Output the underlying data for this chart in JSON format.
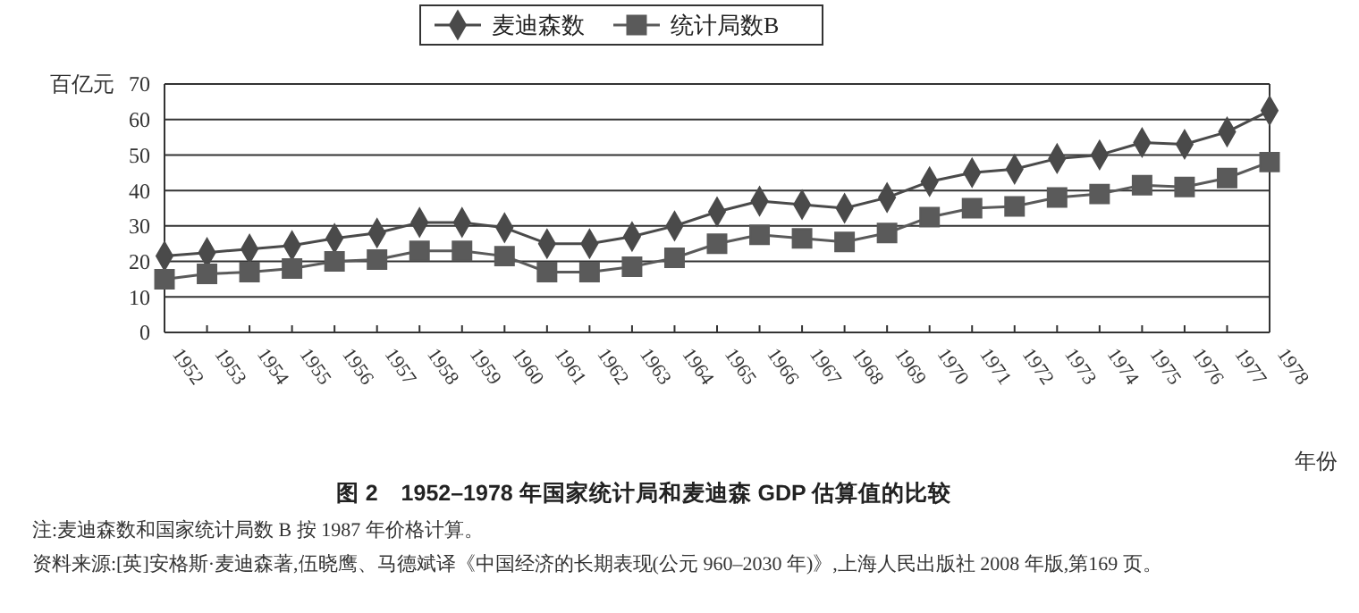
{
  "chart_data": {
    "type": "line",
    "title": "图 2　1952–1978 年国家统计局和麦迪森 GDP 估算值的比较",
    "ylabel": "百亿元",
    "xlabel": "年份",
    "categories": [
      "1952",
      "1953",
      "1954",
      "1955",
      "1956",
      "1957",
      "1958",
      "1959",
      "1960",
      "1961",
      "1962",
      "1963",
      "1964",
      "1965",
      "1966",
      "1967",
      "1968",
      "1969",
      "1970",
      "1971",
      "1972",
      "1973",
      "1974",
      "1975",
      "1976",
      "1977",
      "1978"
    ],
    "series": [
      {
        "name": "麦迪森数",
        "color": "#4a4a4a",
        "marker": "diamond",
        "values": [
          21.5,
          22.5,
          23.5,
          24.5,
          26.5,
          28,
          31,
          31,
          29.5,
          25,
          25,
          27,
          30,
          34,
          37,
          36,
          35,
          38,
          42.5,
          45,
          46,
          49,
          50,
          53.5,
          53,
          56.5,
          62.5
        ]
      },
      {
        "name": "统计局数B",
        "color": "#5a5a5a",
        "marker": "square",
        "values": [
          15,
          16.5,
          17,
          18,
          20,
          20.5,
          23,
          23,
          21.5,
          17,
          17,
          18.5,
          21,
          25,
          27.5,
          26.5,
          25.5,
          28,
          32.5,
          35,
          35.5,
          38,
          39,
          41.5,
          41,
          43.5,
          48
        ]
      }
    ],
    "ylim": [
      0,
      70
    ],
    "yticks": [
      0,
      10,
      20,
      30,
      40,
      50,
      60,
      70
    ],
    "grid": "y",
    "legend": "top",
    "annotations": [
      "注:麦迪森数和国家统计局数 B 按 1987 年价格计算。",
      "资料来源:[英]安格斯·麦迪森著,伍晓鹰、马德斌译《中国经济的长期表现(公元 960–2030 年)》,上海人民出版社 2008 年版,第169 页。"
    ]
  }
}
